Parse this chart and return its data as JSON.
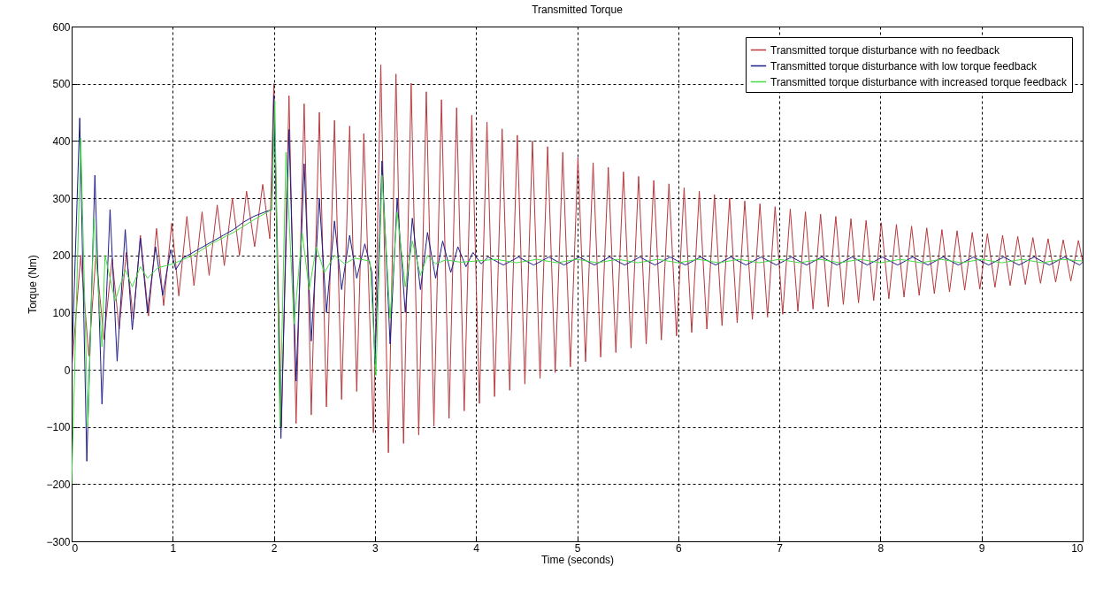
{
  "chart_data": {
    "type": "line",
    "title": "Transmitted Torque",
    "xlabel": "Time (seconds)",
    "ylabel": "Torque (Nm)",
    "xlim": [
      0,
      10
    ],
    "xticks": [
      0,
      1,
      2,
      3,
      4,
      5,
      6,
      7,
      8,
      9,
      10
    ],
    "ylim": [
      -300,
      600
    ],
    "yticks": [
      -300,
      -200,
      -100,
      0,
      100,
      200,
      300,
      400,
      500,
      600
    ],
    "grid": true,
    "legend": "top right",
    "series": [
      {
        "name": "Transmitted torque disturbance with no feedback",
        "color": "#b8383c",
        "x": [
          0,
          0.09,
          0.17,
          0.24,
          0.32,
          0.4,
          0.47,
          0.54,
          0.61,
          0.68,
          0.76,
          0.84,
          0.91,
          0.99,
          1.06,
          1.14,
          1.21,
          1.29,
          1.36,
          1.44,
          1.51,
          1.59,
          1.66,
          1.73,
          1.81,
          1.89,
          1.96,
          2.0,
          2.075,
          2.15,
          2.22,
          2.3,
          2.37,
          2.45,
          2.52,
          2.6,
          2.67,
          2.75,
          2.82,
          2.89,
          2.985,
          3.058,
          3.133,
          3.208,
          3.283,
          3.358,
          3.433,
          3.508,
          3.583,
          3.658,
          3.733,
          3.808,
          3.883,
          3.958,
          4.033,
          4.108,
          4.183,
          4.258,
          4.333,
          4.408,
          4.483,
          4.558,
          4.633,
          4.708,
          4.783,
          4.858,
          4.933,
          5.008,
          5.083,
          5.158,
          5.233,
          5.308,
          5.383,
          5.458,
          5.533,
          5.608,
          5.683,
          5.758,
          5.833,
          5.908,
          5.983,
          6.058,
          6.133,
          6.208,
          6.283,
          6.358,
          6.433,
          6.508,
          6.583,
          6.658,
          6.733,
          6.808,
          6.883,
          6.958,
          7.033,
          7.108,
          7.183,
          7.258,
          7.333,
          7.408,
          7.483,
          7.558,
          7.633,
          7.708,
          7.783,
          7.858,
          7.933,
          8.008,
          8.083,
          8.158,
          8.233,
          8.308,
          8.383,
          8.458,
          8.533,
          8.608,
          8.683,
          8.758,
          8.833,
          8.908,
          8.983,
          9.058,
          9.133,
          9.208,
          9.283,
          9.358,
          9.433,
          9.508,
          9.583,
          9.658,
          9.733,
          9.808,
          9.883,
          9.958,
          10.0
        ],
        "values": [
          0,
          200,
          24,
          200,
          53,
          194,
          71,
          205,
          88,
          235,
          94,
          247,
          112,
          256,
          129,
          268,
          147,
          276,
          165,
          288,
          182,
          300,
          200,
          312,
          215,
          324,
          229,
          500,
          -100,
          479,
          -94,
          465,
          -79,
          450,
          -65,
          436,
          -52,
          426,
          -38,
          413,
          -110,
          533,
          -145,
          517,
          -129,
          501,
          -114,
          486,
          -99,
          472,
          -85,
          458,
          -72,
          445,
          -59,
          433,
          -47,
          421,
          -36,
          410,
          -25,
          400,
          -15,
          390,
          -5,
          380,
          5,
          371,
          14,
          362,
          22,
          354,
          30,
          346,
          38,
          338,
          45,
          331,
          52,
          325,
          59,
          318,
          65,
          312,
          71,
          306,
          77,
          300,
          82,
          295,
          88,
          290,
          92,
          285,
          97,
          281,
          102,
          276,
          106,
          272,
          110,
          268,
          114,
          264,
          117,
          261,
          121,
          257,
          124,
          254,
          127,
          251,
          130,
          248,
          133,
          245,
          136,
          243,
          139,
          240,
          141,
          238,
          144,
          235,
          147,
          233,
          149,
          231,
          151,
          229,
          153,
          227,
          155,
          226,
          190
        ]
      },
      {
        "name": "Transmitted torque disturbance with low torque feedback",
        "color": "#1c1c8a",
        "x": [
          0,
          0.08,
          0.15,
          0.23,
          0.3,
          0.38,
          0.45,
          0.53,
          0.6,
          0.68,
          0.75,
          0.83,
          0.9,
          0.98,
          1.03,
          1.1,
          1.2,
          1.3,
          1.4,
          1.5,
          1.6,
          1.7,
          1.8,
          1.9,
          1.98,
          2.0,
          2.07,
          2.15,
          2.22,
          2.3,
          2.37,
          2.45,
          2.52,
          2.6,
          2.67,
          2.75,
          2.82,
          2.9,
          2.97,
          3.0,
          3.07,
          3.15,
          3.22,
          3.3,
          3.37,
          3.45,
          3.52,
          3.6,
          3.67,
          3.75,
          3.82,
          3.9,
          3.97,
          4.05,
          4.12,
          4.27,
          4.42,
          4.57,
          4.72,
          4.87,
          5.02,
          5.17,
          5.32,
          5.47,
          5.62,
          5.77,
          5.92,
          6.07,
          6.22,
          6.37,
          6.52,
          6.67,
          6.82,
          6.97,
          7.12,
          7.27,
          7.42,
          7.57,
          7.72,
          7.87,
          8.02,
          8.17,
          8.32,
          8.47,
          8.62,
          8.77,
          8.92,
          9.07,
          9.22,
          9.37,
          9.52,
          9.67,
          9.82,
          9.97,
          10.0
        ],
        "values": [
          0,
          440,
          -160,
          340,
          -60,
          280,
          15,
          245,
          70,
          230,
          100,
          215,
          130,
          210,
          175,
          195,
          205,
          215,
          225,
          235,
          245,
          258,
          268,
          275,
          280,
          480,
          -120,
          420,
          -20,
          360,
          50,
          300,
          100,
          260,
          140,
          235,
          160,
          220,
          170,
          10,
          365,
          45,
          300,
          100,
          265,
          140,
          240,
          160,
          225,
          170,
          215,
          180,
          205,
          185,
          197,
          183,
          197,
          183,
          197,
          183,
          197,
          183,
          197,
          183,
          197,
          183,
          197,
          183,
          197,
          183,
          197,
          183,
          197,
          183,
          197,
          183,
          197,
          183,
          197,
          183,
          197,
          183,
          197,
          183,
          197,
          183,
          197,
          183,
          197,
          183,
          197,
          183,
          197,
          183,
          188
        ]
      },
      {
        "name": "Transmitted torque disturbance with increased torque feedback",
        "color": "#44dd44",
        "x": [
          0,
          0.09,
          0.16,
          0.22,
          0.3,
          0.33,
          0.43,
          0.53,
          0.6,
          0.68,
          0.75,
          0.85,
          1.0,
          1.2,
          1.4,
          1.6,
          1.8,
          1.98,
          2.01,
          2.06,
          2.12,
          2.2,
          2.28,
          2.35,
          2.42,
          2.5,
          2.6,
          2.7,
          2.8,
          2.95,
          3.01,
          3.07,
          3.15,
          3.22,
          3.3,
          3.37,
          3.45,
          3.52,
          3.6,
          3.7,
          3.85,
          4.0,
          4.2,
          4.4,
          4.6,
          4.8,
          5.0,
          5.2,
          5.4,
          5.6,
          5.8,
          6.0,
          6.2,
          6.4,
          6.6,
          6.8,
          7.0,
          7.2,
          7.4,
          7.6,
          7.8,
          8.0,
          8.2,
          8.4,
          8.6,
          8.8,
          9.0,
          9.2,
          9.4,
          9.6,
          9.8,
          10.0
        ],
        "values": [
          -200,
          405,
          -100,
          265,
          40,
          200,
          120,
          175,
          145,
          180,
          160,
          178,
          185,
          200,
          222,
          240,
          262,
          280,
          470,
          -100,
          380,
          80,
          240,
          140,
          215,
          170,
          200,
          185,
          195,
          190,
          -10,
          340,
          90,
          275,
          145,
          225,
          165,
          200,
          185,
          192,
          188,
          190,
          193,
          187,
          193,
          187,
          193,
          187,
          193,
          187,
          193,
          187,
          193,
          187,
          193,
          187,
          193,
          187,
          193,
          187,
          193,
          187,
          193,
          187,
          193,
          187,
          193,
          187,
          193,
          187,
          193,
          190
        ]
      }
    ]
  }
}
